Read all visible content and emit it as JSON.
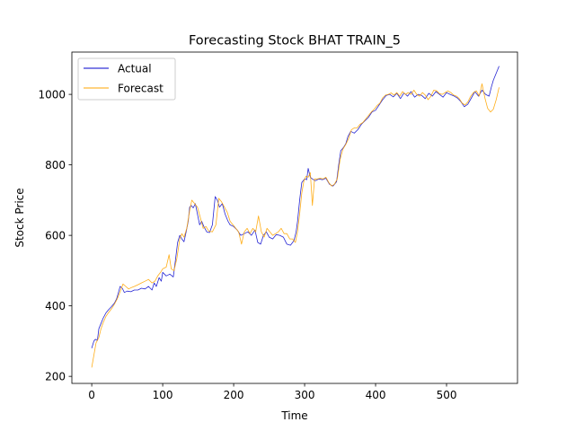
{
  "chart_data": {
    "type": "line",
    "title": "Forecasting Stock BHAT TRAIN_5",
    "xlabel": "Time",
    "ylabel": "Stock Price",
    "xlim": [
      -28,
      600
    ],
    "ylim": [
      180,
      1120
    ],
    "xticks": [
      0,
      100,
      200,
      300,
      400,
      500
    ],
    "yticks": [
      200,
      400,
      600,
      800,
      1000
    ],
    "grid": false,
    "legend_position": "top-left",
    "series": [
      {
        "name": "Actual",
        "color": "#0000cc",
        "points": [
          [
            0,
            280
          ],
          [
            3,
            300
          ],
          [
            5,
            305
          ],
          [
            8,
            302
          ],
          [
            10,
            335
          ],
          [
            13,
            350
          ],
          [
            16,
            365
          ],
          [
            20,
            380
          ],
          [
            24,
            390
          ],
          [
            28,
            398
          ],
          [
            32,
            408
          ],
          [
            35,
            420
          ],
          [
            38,
            440
          ],
          [
            40,
            455
          ],
          [
            43,
            450
          ],
          [
            46,
            438
          ],
          [
            50,
            442
          ],
          [
            55,
            440
          ],
          [
            60,
            445
          ],
          [
            65,
            445
          ],
          [
            70,
            450
          ],
          [
            75,
            448
          ],
          [
            80,
            455
          ],
          [
            85,
            445
          ],
          [
            88,
            465
          ],
          [
            91,
            455
          ],
          [
            95,
            480
          ],
          [
            98,
            470
          ],
          [
            100,
            495
          ],
          [
            105,
            485
          ],
          [
            110,
            490
          ],
          [
            115,
            482
          ],
          [
            118,
            530
          ],
          [
            121,
            580
          ],
          [
            124,
            600
          ],
          [
            127,
            590
          ],
          [
            130,
            582
          ],
          [
            133,
            610
          ],
          [
            136,
            640
          ],
          [
            138,
            680
          ],
          [
            140,
            685
          ],
          [
            143,
            678
          ],
          [
            146,
            690
          ],
          [
            149,
            660
          ],
          [
            152,
            630
          ],
          [
            155,
            640
          ],
          [
            158,
            625
          ],
          [
            162,
            610
          ],
          [
            166,
            608
          ],
          [
            170,
            630
          ],
          [
            174,
            710
          ],
          [
            177,
            700
          ],
          [
            180,
            680
          ],
          [
            184,
            690
          ],
          [
            188,
            660
          ],
          [
            192,
            640
          ],
          [
            195,
            630
          ],
          [
            200,
            625
          ],
          [
            205,
            615
          ],
          [
            210,
            600
          ],
          [
            215,
            605
          ],
          [
            220,
            610
          ],
          [
            225,
            600
          ],
          [
            230,
            615
          ],
          [
            234,
            580
          ],
          [
            238,
            575
          ],
          [
            242,
            600
          ],
          [
            246,
            610
          ],
          [
            250,
            595
          ],
          [
            255,
            590
          ],
          [
            260,
            602
          ],
          [
            265,
            600
          ],
          [
            270,
            595
          ],
          [
            275,
            575
          ],
          [
            280,
            572
          ],
          [
            285,
            585
          ],
          [
            288,
            610
          ],
          [
            290,
            640
          ],
          [
            293,
            700
          ],
          [
            296,
            750
          ],
          [
            300,
            760
          ],
          [
            303,
            758
          ],
          [
            305,
            790
          ],
          [
            308,
            765
          ],
          [
            311,
            760
          ],
          [
            315,
            755
          ],
          [
            320,
            760
          ],
          [
            325,
            758
          ],
          [
            330,
            762
          ],
          [
            335,
            745
          ],
          [
            340,
            740
          ],
          [
            345,
            752
          ],
          [
            348,
            800
          ],
          [
            351,
            840
          ],
          [
            355,
            850
          ],
          [
            358,
            860
          ],
          [
            361,
            880
          ],
          [
            365,
            895
          ],
          [
            370,
            890
          ],
          [
            375,
            900
          ],
          [
            380,
            915
          ],
          [
            385,
            925
          ],
          [
            390,
            935
          ],
          [
            395,
            950
          ],
          [
            400,
            955
          ],
          [
            405,
            970
          ],
          [
            410,
            985
          ],
          [
            415,
            997
          ],
          [
            420,
            1000
          ],
          [
            425,
            993
          ],
          [
            430,
            1003
          ],
          [
            435,
            988
          ],
          [
            440,
            1004
          ],
          [
            445,
            995
          ],
          [
            450,
            1008
          ],
          [
            455,
            992
          ],
          [
            460,
            1000
          ],
          [
            465,
            997
          ],
          [
            470,
            988
          ],
          [
            475,
            1003
          ],
          [
            480,
            995
          ],
          [
            485,
            1008
          ],
          [
            490,
            1000
          ],
          [
            495,
            992
          ],
          [
            500,
            1005
          ],
          [
            505,
            1000
          ],
          [
            510,
            996
          ],
          [
            515,
            990
          ],
          [
            520,
            980
          ],
          [
            525,
            965
          ],
          [
            530,
            972
          ],
          [
            535,
            990
          ],
          [
            540,
            1008
          ],
          [
            545,
            995
          ],
          [
            550,
            1012
          ],
          [
            555,
            1000
          ],
          [
            560,
            995
          ],
          [
            563,
            1020
          ],
          [
            566,
            1040
          ],
          [
            569,
            1055
          ],
          [
            572,
            1070
          ],
          [
            574,
            1080
          ]
        ]
      },
      {
        "name": "Forecast",
        "color": "#ffa500",
        "points": [
          [
            0,
            225
          ],
          [
            3,
            260
          ],
          [
            6,
            295
          ],
          [
            10,
            310
          ],
          [
            13,
            335
          ],
          [
            16,
            352
          ],
          [
            20,
            370
          ],
          [
            24,
            382
          ],
          [
            28,
            392
          ],
          [
            32,
            405
          ],
          [
            36,
            420
          ],
          [
            40,
            440
          ],
          [
            44,
            462
          ],
          [
            48,
            455
          ],
          [
            52,
            448
          ],
          [
            56,
            452
          ],
          [
            60,
            455
          ],
          [
            65,
            460
          ],
          [
            70,
            465
          ],
          [
            75,
            470
          ],
          [
            80,
            475
          ],
          [
            85,
            465
          ],
          [
            89,
            470
          ],
          [
            93,
            485
          ],
          [
            97,
            495
          ],
          [
            100,
            505
          ],
          [
            105,
            510
          ],
          [
            109,
            545
          ],
          [
            112,
            505
          ],
          [
            116,
            500
          ],
          [
            120,
            535
          ],
          [
            124,
            590
          ],
          [
            127,
            605
          ],
          [
            130,
            595
          ],
          [
            134,
            620
          ],
          [
            138,
            670
          ],
          [
            141,
            700
          ],
          [
            145,
            690
          ],
          [
            149,
            680
          ],
          [
            153,
            650
          ],
          [
            157,
            620
          ],
          [
            161,
            625
          ],
          [
            165,
            612
          ],
          [
            170,
            610
          ],
          [
            175,
            630
          ],
          [
            179,
            705
          ],
          [
            183,
            695
          ],
          [
            187,
            680
          ],
          [
            191,
            665
          ],
          [
            195,
            640
          ],
          [
            199,
            630
          ],
          [
            203,
            620
          ],
          [
            207,
            610
          ],
          [
            211,
            575
          ],
          [
            215,
            610
          ],
          [
            219,
            620
          ],
          [
            223,
            605
          ],
          [
            227,
            620
          ],
          [
            231,
            610
          ],
          [
            235,
            655
          ],
          [
            239,
            610
          ],
          [
            243,
            595
          ],
          [
            247,
            620
          ],
          [
            251,
            610
          ],
          [
            255,
            600
          ],
          [
            259,
            605
          ],
          [
            263,
            610
          ],
          [
            267,
            620
          ],
          [
            271,
            605
          ],
          [
            275,
            605
          ],
          [
            279,
            590
          ],
          [
            283,
            590
          ],
          [
            287,
            580
          ],
          [
            290,
            612
          ],
          [
            293,
            660
          ],
          [
            296,
            720
          ],
          [
            299,
            755
          ],
          [
            302,
            768
          ],
          [
            305,
            765
          ],
          [
            308,
            778
          ],
          [
            311,
            685
          ],
          [
            314,
            760
          ],
          [
            318,
            760
          ],
          [
            322,
            762
          ],
          [
            326,
            760
          ],
          [
            330,
            765
          ],
          [
            334,
            750
          ],
          [
            338,
            740
          ],
          [
            342,
            745
          ],
          [
            346,
            760
          ],
          [
            350,
            815
          ],
          [
            354,
            845
          ],
          [
            358,
            858
          ],
          [
            362,
            875
          ],
          [
            366,
            900
          ],
          [
            370,
            905
          ],
          [
            374,
            905
          ],
          [
            378,
            915
          ],
          [
            382,
            920
          ],
          [
            386,
            930
          ],
          [
            390,
            940
          ],
          [
            394,
            950
          ],
          [
            398,
            958
          ],
          [
            402,
            968
          ],
          [
            406,
            975
          ],
          [
            410,
            990
          ],
          [
            414,
            998
          ],
          [
            418,
            1000
          ],
          [
            422,
            1004
          ],
          [
            426,
            998
          ],
          [
            430,
            1005
          ],
          [
            434,
            995
          ],
          [
            438,
            1008
          ],
          [
            442,
            1000
          ],
          [
            446,
            1005
          ],
          [
            450,
            1000
          ],
          [
            454,
            1012
          ],
          [
            458,
            1000
          ],
          [
            462,
            995
          ],
          [
            466,
            1005
          ],
          [
            470,
            998
          ],
          [
            474,
            985
          ],
          [
            478,
            995
          ],
          [
            482,
            1012
          ],
          [
            486,
            1010
          ],
          [
            490,
            1002
          ],
          [
            494,
            1000
          ],
          [
            498,
            1005
          ],
          [
            502,
            1010
          ],
          [
            506,
            1005
          ],
          [
            510,
            998
          ],
          [
            514,
            995
          ],
          [
            518,
            988
          ],
          [
            522,
            975
          ],
          [
            526,
            970
          ],
          [
            530,
            978
          ],
          [
            534,
            995
          ],
          [
            538,
            1005
          ],
          [
            542,
            1010
          ],
          [
            546,
            995
          ],
          [
            550,
            1030
          ],
          [
            554,
            990
          ],
          [
            558,
            960
          ],
          [
            562,
            950
          ],
          [
            566,
            958
          ],
          [
            570,
            985
          ],
          [
            574,
            1020
          ]
        ]
      }
    ]
  }
}
